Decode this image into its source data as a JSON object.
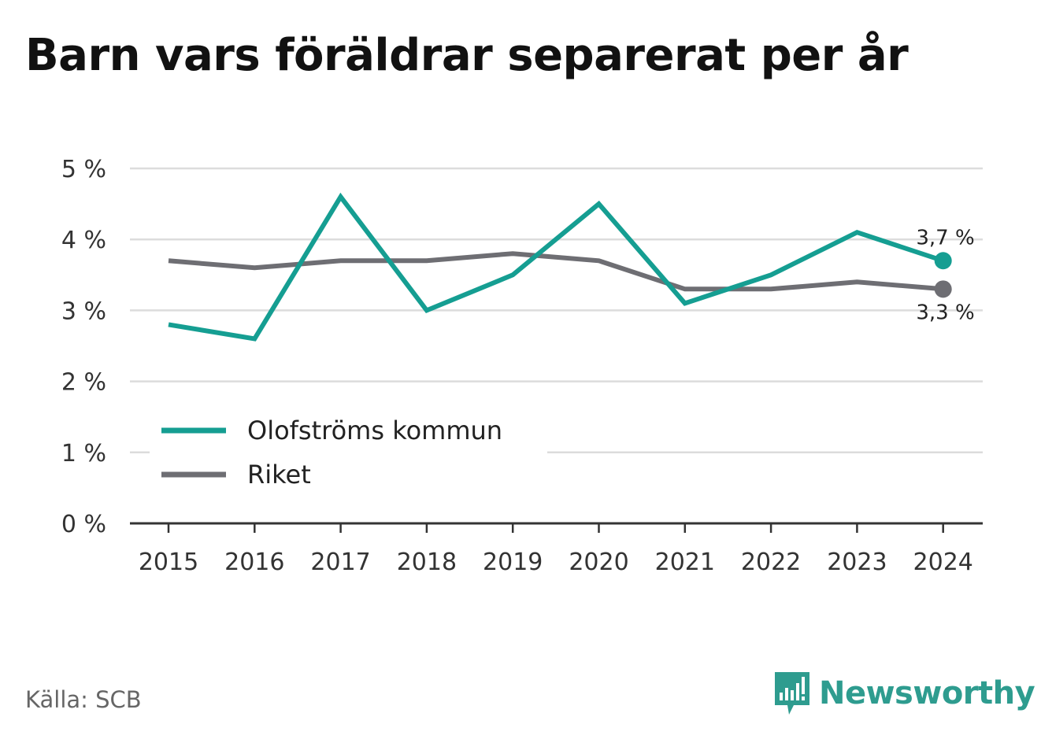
{
  "title": "Barn vars föräldrar separerat per år",
  "source": "Källa: SCB",
  "brand": "Newsworthy",
  "colors": {
    "teal": "#159e92",
    "gray": "#6e6e73",
    "grid": "#dcdcdc",
    "axis": "#333333"
  },
  "chart_data": {
    "type": "line",
    "title": "Barn vars föräldrar separerat per år",
    "xlabel": "",
    "ylabel": "",
    "x": [
      "2015",
      "2016",
      "2017",
      "2018",
      "2019",
      "2020",
      "2021",
      "2022",
      "2023",
      "2024"
    ],
    "ylim": [
      0,
      5
    ],
    "yticks": [
      0,
      1,
      2,
      3,
      4,
      5
    ],
    "ytick_labels": [
      "0 %",
      "1 %",
      "2 %",
      "3 %",
      "4 %",
      "5 %"
    ],
    "grid": true,
    "legend_position": "lower-left",
    "series": [
      {
        "name": "Olofströms kommun",
        "color": "#159e92",
        "values": [
          2.8,
          2.6,
          4.6,
          3.0,
          3.5,
          4.5,
          3.1,
          3.5,
          4.1,
          3.7
        ],
        "end_label": "3,7 %"
      },
      {
        "name": "Riket",
        "color": "#6e6e73",
        "values": [
          3.7,
          3.6,
          3.7,
          3.7,
          3.8,
          3.7,
          3.3,
          3.3,
          3.4,
          3.3
        ],
        "end_label": "3,3 %"
      }
    ]
  }
}
